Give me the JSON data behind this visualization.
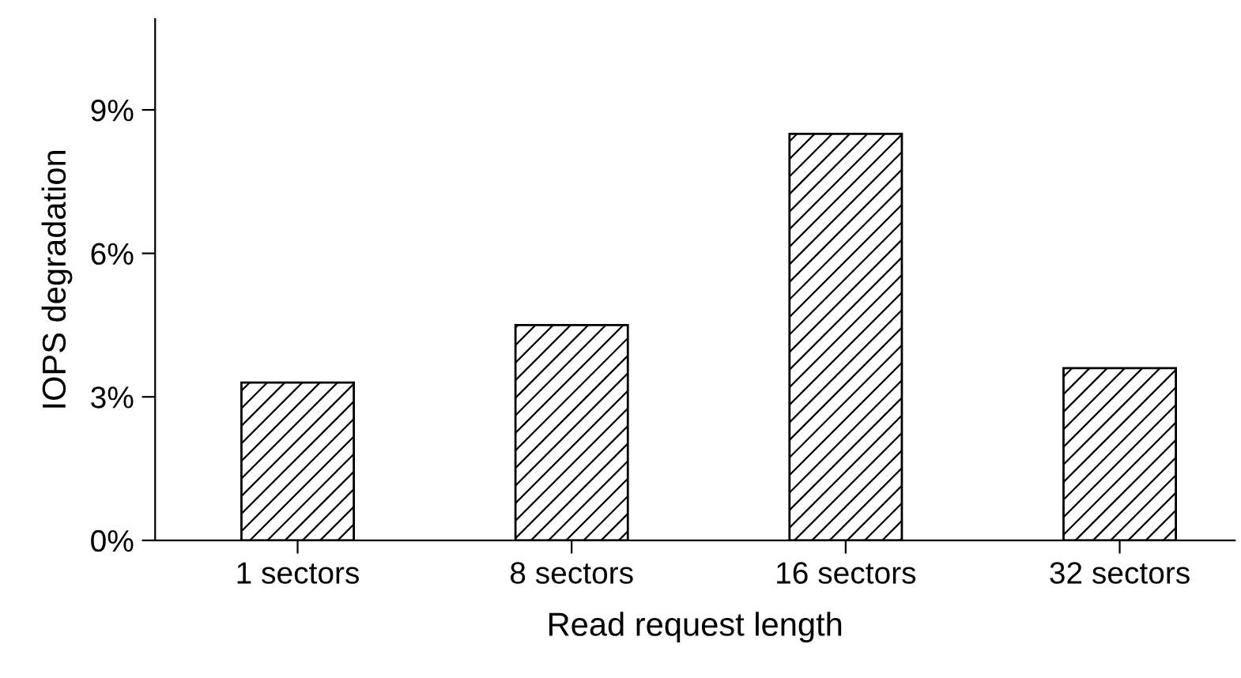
{
  "chart_data": {
    "type": "bar",
    "xlabel": "Read request length",
    "ylabel": "IOPS degradation",
    "categories": [
      "1 sectors",
      "8 sectors",
      "16 sectors",
      "32 sectors"
    ],
    "values": [
      3.3,
      4.5,
      8.5,
      3.6
    ],
    "color": "#000000",
    "ylim": [
      0,
      10.9
    ],
    "yticks": [
      {
        "value": 0,
        "label": "0%"
      },
      {
        "value": 3,
        "label": "3%"
      },
      {
        "value": 6,
        "label": "6%"
      },
      {
        "value": 9,
        "label": "9%"
      }
    ],
    "grid": false,
    "legend": false
  }
}
